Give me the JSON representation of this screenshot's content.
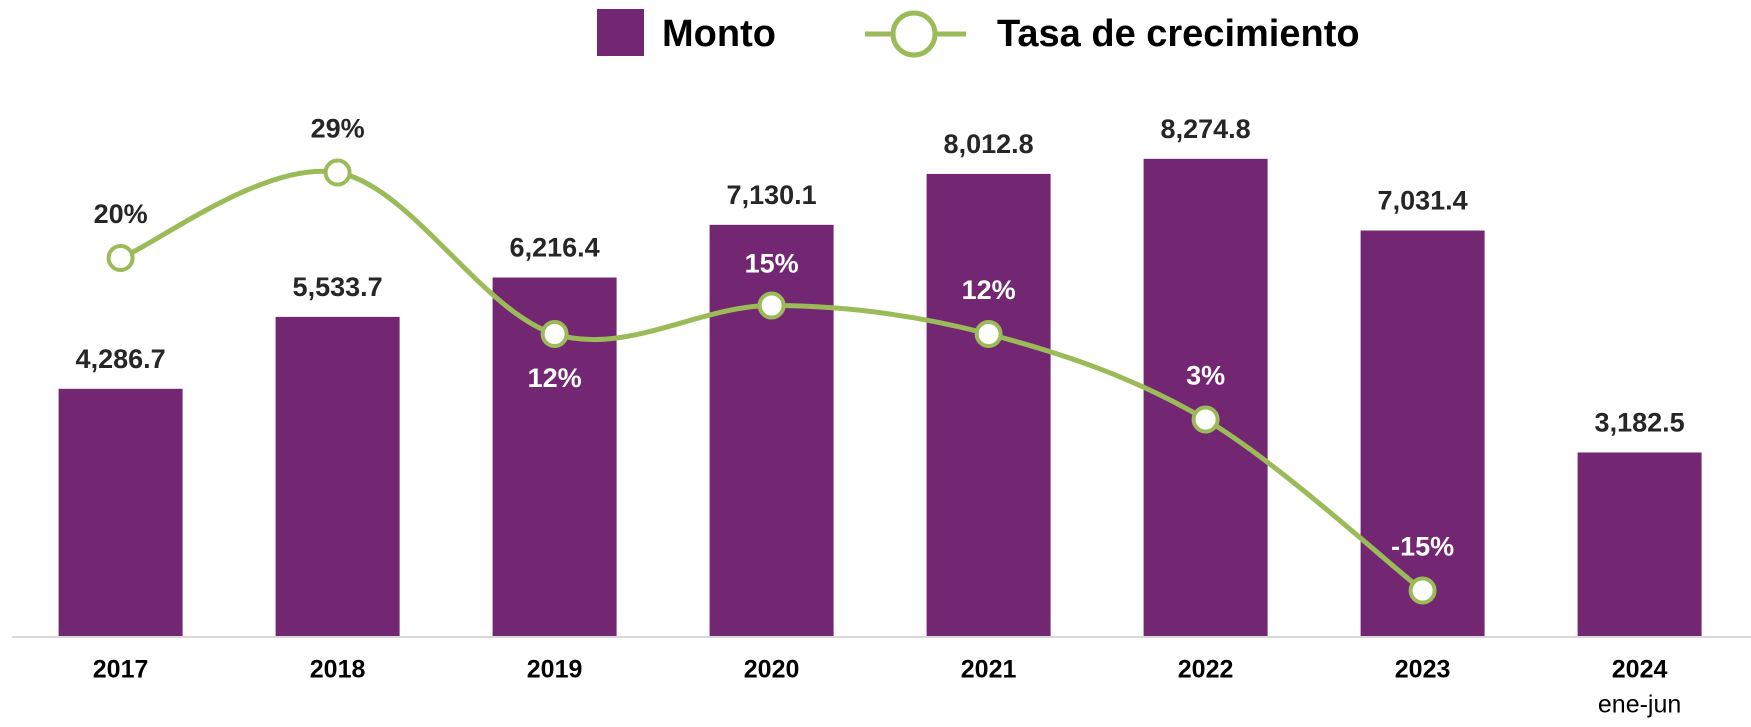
{
  "chart_data": {
    "type": "bar",
    "categories": [
      "2017",
      "2018",
      "2019",
      "2020",
      "2021",
      "2022",
      "2023",
      "2024"
    ],
    "category_notes": [
      null,
      null,
      null,
      null,
      null,
      null,
      null,
      "ene-jun"
    ],
    "ylim": [
      0,
      9000
    ],
    "y2lim": [
      -20,
      40
    ],
    "series": [
      {
        "name": "Monto",
        "type": "bar",
        "color": "#732772",
        "values": [
          4286.7,
          5533.7,
          6216.4,
          7130.1,
          8012.8,
          8274.8,
          7031.4,
          3182.5
        ],
        "value_labels": [
          "4,286.7",
          "5,533.7",
          "6,216.4",
          "7,130.1",
          "8,012.8",
          "8,274.8",
          "7,031.4",
          "3,182.5"
        ]
      },
      {
        "name": "Tasa de crecimiento",
        "type": "line",
        "axis": "y2",
        "color": "#9bbb59",
        "values": [
          20,
          29,
          12,
          15,
          12,
          3,
          -15,
          null
        ],
        "value_labels": [
          "20%",
          "29%",
          "12%",
          "15%",
          "12%",
          "3%",
          "-15%",
          null
        ]
      }
    ],
    "legend": "top"
  }
}
